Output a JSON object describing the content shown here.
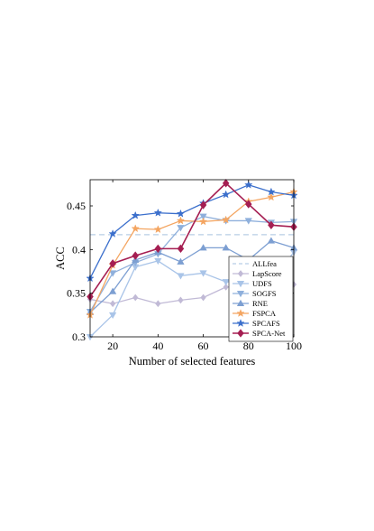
{
  "chart_data": {
    "type": "line",
    "xlabel": "Number of selected features",
    "ylabel": "ACC",
    "xlim": [
      10,
      100
    ],
    "ylim": [
      0.3,
      0.48
    ],
    "xticks": [
      20,
      40,
      60,
      80,
      100
    ],
    "yticks": [
      0.3,
      0.35,
      0.4,
      0.45
    ],
    "ytick_labels": [
      "0.3",
      "0.35",
      "0.4",
      "0.45"
    ],
    "grid": false,
    "legend_position": "bottom-right",
    "x": [
      10,
      20,
      30,
      40,
      50,
      60,
      70,
      80,
      90,
      100
    ],
    "series": [
      {
        "name": "ALLfea",
        "color": "#b7cde6",
        "marker": "none",
        "dashed": true,
        "values": [
          0.417,
          0.417,
          0.417,
          0.417,
          0.417,
          0.417,
          0.417,
          0.417,
          0.417,
          0.417
        ]
      },
      {
        "name": "LapScore",
        "color": "#c1bad6",
        "marker": "diamond",
        "values": [
          0.343,
          0.338,
          0.345,
          0.338,
          0.342,
          0.345,
          0.357,
          0.358,
          0.358,
          0.36
        ]
      },
      {
        "name": "UDFS",
        "color": "#a9c4e8",
        "marker": "triangle-down",
        "values": [
          0.3,
          0.325,
          0.38,
          0.387,
          0.37,
          0.373,
          0.363,
          0.363,
          0.363,
          0.397
        ]
      },
      {
        "name": "SOGFS",
        "color": "#8fb0dc",
        "marker": "triangle-down",
        "values": [
          0.329,
          0.373,
          0.385,
          0.395,
          0.425,
          0.438,
          0.433,
          0.433,
          0.431,
          0.432
        ]
      },
      {
        "name": "RNE",
        "color": "#7d9fd2",
        "marker": "triangle-up",
        "values": [
          0.328,
          0.352,
          0.388,
          0.397,
          0.386,
          0.402,
          0.402,
          0.388,
          0.41,
          0.402
        ]
      },
      {
        "name": "FSPCA",
        "color": "#f4a561",
        "marker": "star",
        "values": [
          0.325,
          0.382,
          0.424,
          0.423,
          0.433,
          0.432,
          0.434,
          0.455,
          0.46,
          0.466
        ]
      },
      {
        "name": "SPCAFS",
        "color": "#3b6fcc",
        "marker": "star",
        "values": [
          0.367,
          0.418,
          0.439,
          0.442,
          0.441,
          0.453,
          0.463,
          0.474,
          0.466,
          0.462
        ]
      },
      {
        "name": "SPCA-Net",
        "color": "#a51e52",
        "marker": "diamond-filled",
        "values": [
          0.346,
          0.384,
          0.393,
          0.401,
          0.401,
          0.451,
          0.476,
          0.452,
          0.428,
          0.426
        ]
      }
    ]
  }
}
